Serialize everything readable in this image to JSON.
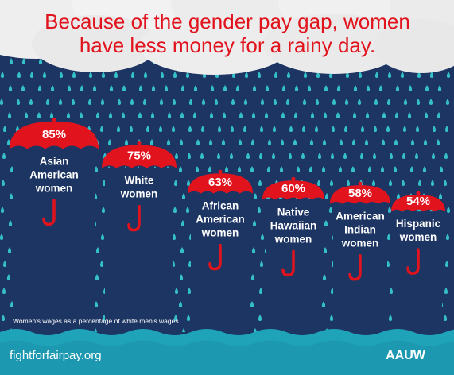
{
  "headline": "Because of the gender pay gap, women have less money for a rainy day.",
  "headline_lines": [
    "Because of the gender pay gap, women",
    "have less money for a rainy day."
  ],
  "colors": {
    "background": "#1d3563",
    "umbrella": "#e1131d",
    "headline": "#e1131d",
    "raindrop": "#35bfc9",
    "water": "#1fa3b8",
    "text": "#ffffff",
    "cloud": "#eeeeee"
  },
  "chart_data": {
    "type": "bar",
    "categories": [
      "Asian American women",
      "White women",
      "African American women",
      "Native Hawaiian women",
      "American Indian women",
      "Hispanic women"
    ],
    "category_lines": [
      [
        "Asian",
        "American",
        "women"
      ],
      [
        "White",
        "women"
      ],
      [
        "African",
        "American",
        "women"
      ],
      [
        "Native",
        "Hawaiian",
        "women"
      ],
      [
        "American",
        "Indian",
        "women"
      ],
      [
        "Hispanic",
        "women"
      ]
    ],
    "values": [
      85,
      75,
      63,
      60,
      58,
      54
    ],
    "value_labels": [
      "85%",
      "75%",
      "63%",
      "60%",
      "58%",
      "54%"
    ],
    "unit": "%",
    "encoding": "umbrella height",
    "note": "Women's wages as a percentage of white men's wages"
  },
  "footer": {
    "website": "fightforfairpay.org",
    "logo_text": "AAUW"
  }
}
